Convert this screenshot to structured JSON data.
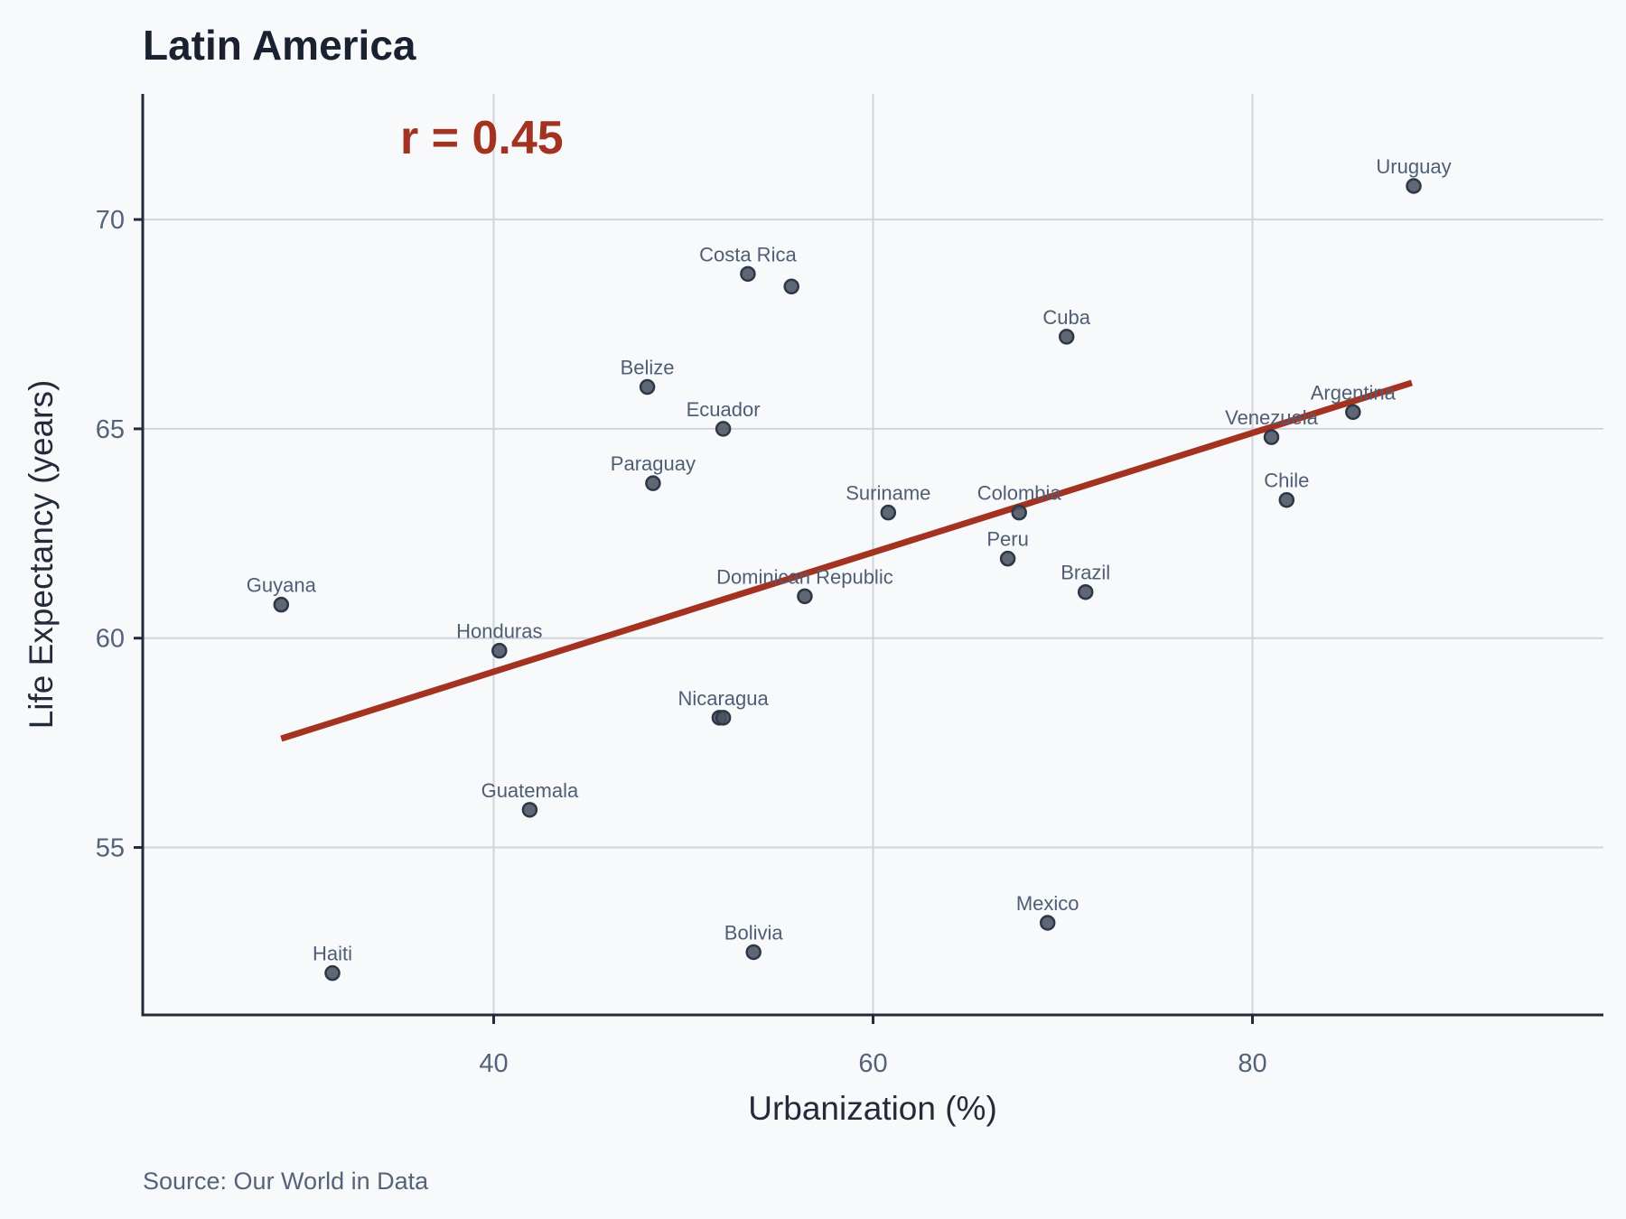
{
  "chart_data": {
    "type": "scatter",
    "title": "Latin America",
    "xlabel": "Urbanization (%)",
    "ylabel": "Life Expectancy (years)",
    "source": "Source: Our World in Data",
    "annotation": "r = 0.45",
    "xlim": [
      21.5,
      98.5
    ],
    "ylim": [
      51.0,
      73.0
    ],
    "xticks": [
      40,
      60,
      80
    ],
    "yticks": [
      55,
      60,
      65,
      70
    ],
    "grid": true,
    "colors": {
      "points": "#4a5262",
      "trend": "#a33220",
      "background": "#f7f9fb"
    },
    "trendline": {
      "x": [
        28.8,
        88.4
      ],
      "y": [
        57.6,
        66.1
      ]
    },
    "points": [
      {
        "label": "Uruguay",
        "x": 88.5,
        "y": 70.8
      },
      {
        "label": "Costa Rica",
        "x": 53.4,
        "y": 68.7
      },
      {
        "label": "",
        "x": 55.7,
        "y": 68.4
      },
      {
        "label": "Cuba",
        "x": 70.2,
        "y": 67.2
      },
      {
        "label": "Belize",
        "x": 48.1,
        "y": 66.0
      },
      {
        "label": "Argentina",
        "x": 85.3,
        "y": 65.4
      },
      {
        "label": "Ecuador",
        "x": 52.1,
        "y": 65.0
      },
      {
        "label": "Venezuela",
        "x": 81.0,
        "y": 64.8
      },
      {
        "label": "Paraguay",
        "x": 48.4,
        "y": 63.7
      },
      {
        "label": "Chile",
        "x": 81.8,
        "y": 63.3
      },
      {
        "label": "Colombia",
        "x": 67.7,
        "y": 63.0
      },
      {
        "label": "Suriname",
        "x": 60.8,
        "y": 63.0
      },
      {
        "label": "Peru",
        "x": 67.1,
        "y": 61.9
      },
      {
        "label": "Brazil",
        "x": 71.2,
        "y": 61.1
      },
      {
        "label": "Dominican Republic",
        "x": 56.4,
        "y": 61.0
      },
      {
        "label": "Guyana",
        "x": 28.8,
        "y": 60.8
      },
      {
        "label": "Honduras",
        "x": 40.3,
        "y": 59.7
      },
      {
        "label": "",
        "x": 51.9,
        "y": 58.1
      },
      {
        "label": "Nicaragua",
        "x": 52.1,
        "y": 58.1
      },
      {
        "label": "Guatemala",
        "x": 41.9,
        "y": 55.9
      },
      {
        "label": "Mexico",
        "x": 69.2,
        "y": 53.2
      },
      {
        "label": "Bolivia",
        "x": 53.7,
        "y": 52.5
      },
      {
        "label": "Haiti",
        "x": 31.5,
        "y": 52.0
      }
    ]
  }
}
